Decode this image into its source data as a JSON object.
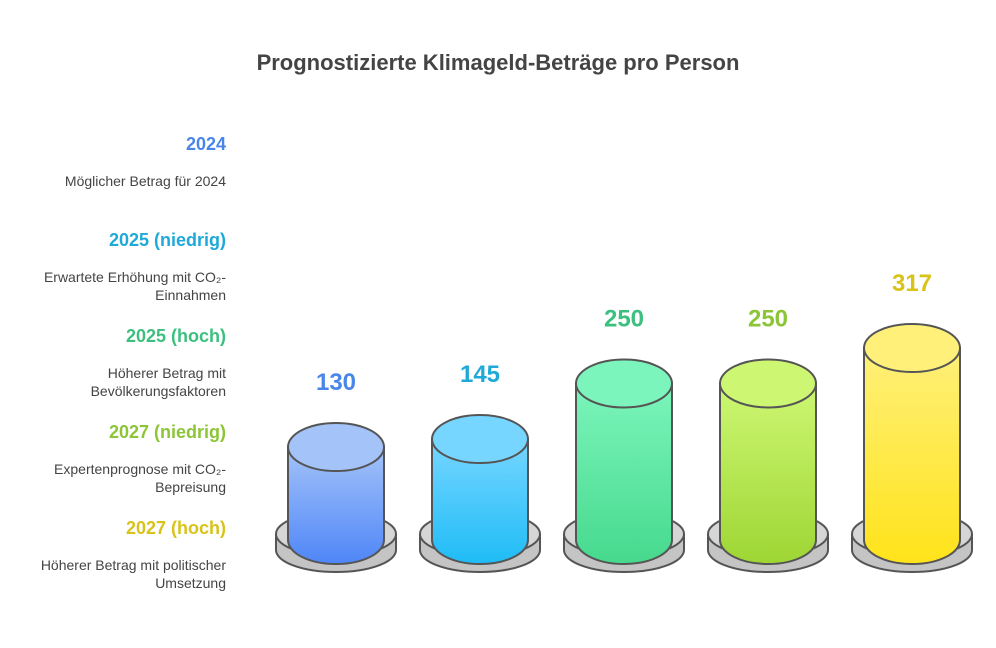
{
  "chart_data": {
    "type": "bar",
    "title": "Prognostizierte Klimageld-Beträge pro Person",
    "categories": [
      "2024",
      "2025 (niedrig)",
      "2025 (hoch)",
      "2027 (niedrig)",
      "2027 (hoch)"
    ],
    "values": [
      130,
      145,
      250,
      250,
      317
    ],
    "descriptions": [
      [
        "Möglicher Betrag für 2024"
      ],
      [
        "Erwartete Erhöhung mit CO₂-",
        "Einnahmen"
      ],
      [
        "Höherer Betrag mit",
        "Bevölkerungsfaktoren"
      ],
      [
        "Expertenprognose mit CO₂-",
        "Bepreisung"
      ],
      [
        "Höherer Betrag mit politischer",
        "Umsetzung"
      ]
    ],
    "colors": [
      {
        "label": "#4a86e8",
        "top": "#a4c3f9",
        "bottom": "#4f86f7"
      },
      {
        "label": "#1ea9d9",
        "top": "#77d6ff",
        "bottom": "#1fbcf6"
      },
      {
        "label": "#3cc07f",
        "top": "#7cf5bc",
        "bottom": "#46d98d"
      },
      {
        "label": "#8cc536",
        "top": "#cdf773",
        "bottom": "#9ed634"
      },
      {
        "label": "#d9c31a",
        "top": "#fff07a",
        "bottom": "#ffe31a"
      }
    ]
  }
}
